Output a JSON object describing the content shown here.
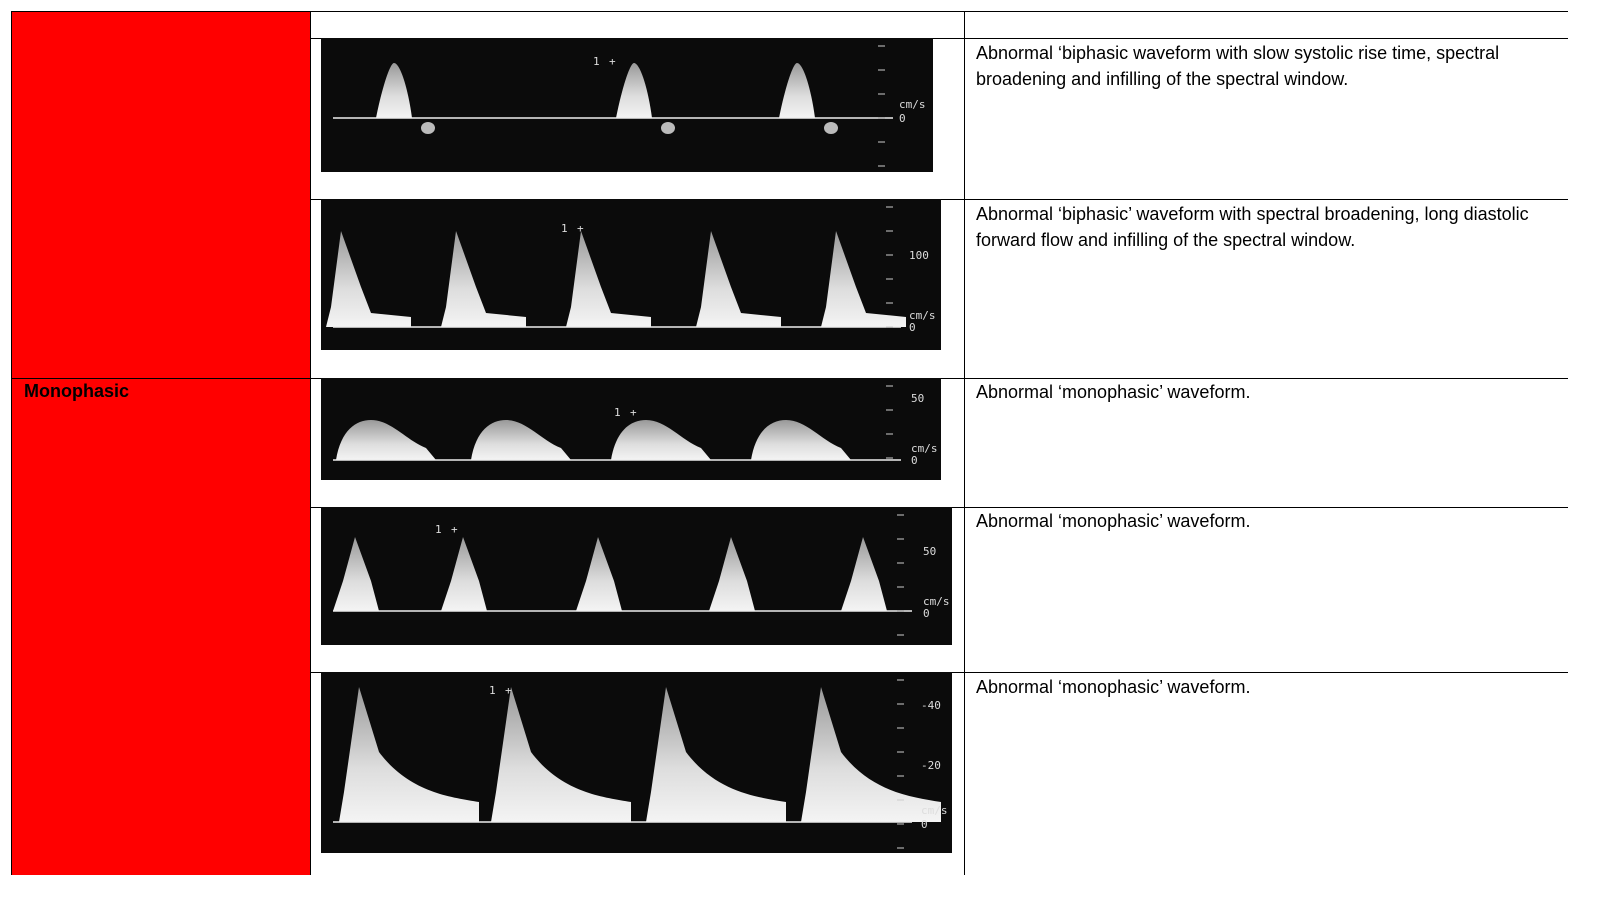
{
  "groups": [
    {
      "rows": [
        {
          "description": "Abnormal ‘biphasic waveform with slow systolic rise time, spectral broadening and infilling of the spectral window.",
          "image": {
            "labels": [
              "1",
              "cm/s",
              "0"
            ]
          }
        },
        {
          "description": "Abnormal ‘biphasic’ waveform with spectral broadening, long diastolic forward flow and infilling of the spectral window.",
          "image": {
            "labels": [
              "1",
              "100",
              "cm/s",
              "0"
            ]
          }
        }
      ]
    },
    {
      "label": "Monophasic",
      "rows": [
        {
          "description": "Abnormal ‘monophasic’ waveform.",
          "image": {
            "labels": [
              "1",
              "50",
              "cm/s",
              "0"
            ]
          }
        },
        {
          "description": "Abnormal ‘monophasic’ waveform.",
          "image": {
            "labels": [
              "1",
              "50",
              "cm/s",
              "0"
            ]
          }
        },
        {
          "description": "Abnormal ‘monophasic’ waveform.",
          "image": {
            "labels": [
              "1",
              "-40",
              "-20",
              "cm/s",
              "0"
            ]
          }
        }
      ]
    }
  ]
}
